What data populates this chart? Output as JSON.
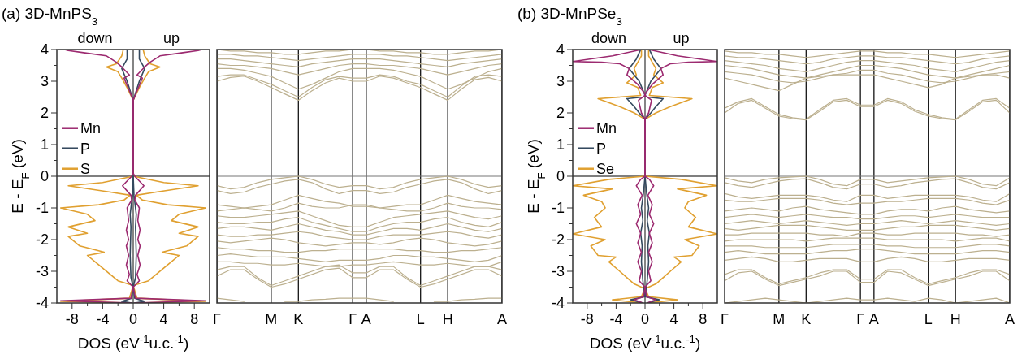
{
  "chart_data": [
    {
      "type": "line",
      "title": "(a) 3D-MnPS$_{3}$",
      "xlabel": "DOS (eV$^{-1}$u.c.$^{-1}$)",
      "ylabel": "E - E$_{F}$ (eV)",
      "annotations": [
        "down",
        "up"
      ],
      "legend": "left",
      "xlim": [
        -10,
        10
      ],
      "ylim": [
        -4,
        4
      ],
      "xticks": [
        -8,
        {
          "value": -6,
          "label": null
        },
        -4,
        {
          "value": -2,
          "label": null
        },
        0,
        {
          "value": 2,
          "label": null
        },
        4,
        {
          "value": 6,
          "label": null
        },
        8
      ],
      "yticks": [
        -4,
        {
          "value": -3.5,
          "label": null
        },
        -3,
        {
          "value": -2.5,
          "label": null
        },
        -2,
        {
          "value": -1.5,
          "label": null
        },
        -1,
        {
          "value": -0.5,
          "label": null
        },
        0,
        {
          "value": 0.5,
          "label": null
        },
        1,
        {
          "value": 1.5,
          "label": null
        },
        2,
        {
          "value": 2.5,
          "label": null
        },
        3,
        {
          "value": 3.5,
          "label": null
        },
        4
      ],
      "ref_lines": [
        {
          "axis": "y",
          "value": 0,
          "color": "#000000"
        },
        {
          "axis": "x",
          "value": 0,
          "color": "#333333"
        }
      ],
      "series": [
        {
          "name": "S",
          "color": "#e0a030",
          "x": [
            0.3,
            9.5,
            0.5,
            0,
            2,
            3,
            4.5,
            6,
            3.8,
            7,
            8.5,
            6,
            8.5,
            5,
            6,
            9.5,
            4.5,
            1.2,
            0.4,
            3,
            8.5,
            4,
            0,
            0,
            0.8,
            1.5,
            2,
            3.5,
            2.2,
            1.5,
            1.3
          ],
          "values": [
            -4,
            -3.95,
            -3.85,
            -3.45,
            -3.3,
            -3.1,
            -2.8,
            -2.5,
            -2.4,
            -2.2,
            -1.9,
            -1.8,
            -1.6,
            -1.4,
            -1.2,
            -1,
            -0.9,
            -0.75,
            -0.6,
            -0.5,
            -0.3,
            -0.2,
            0,
            2.4,
            2.8,
            3.1,
            3.3,
            3.45,
            3.55,
            3.8,
            4
          ]
        },
        {
          "color": "#e0a030",
          "x": [
            -0.3,
            -9.5,
            -0.5,
            0,
            -2,
            -3,
            -4.5,
            -6,
            -3.8,
            -7,
            -8.5,
            -6,
            -8.5,
            -5,
            -6,
            -9.5,
            -4.5,
            -1.2,
            -0.4,
            -3,
            -8.5,
            -4,
            0,
            0,
            -0.8,
            -1.5,
            -2,
            -3.5,
            -2.2,
            -1.5,
            -1.3
          ],
          "values": [
            -4,
            -3.95,
            -3.85,
            -3.45,
            -3.3,
            -3.1,
            -2.8,
            -2.5,
            -2.4,
            -2.2,
            -1.9,
            -1.8,
            -1.6,
            -1.4,
            -1.2,
            -1,
            -0.9,
            -0.75,
            -0.6,
            -0.5,
            -0.3,
            -0.2,
            0,
            2.4,
            2.8,
            3.1,
            3.3,
            3.45,
            3.55,
            3.8,
            4
          ]
        },
        {
          "name": "P",
          "color": "#34495e",
          "x": [
            0.2,
            1.5,
            0.2,
            0,
            0.3,
            0.4,
            0.3,
            0.4,
            0.1,
            0,
            0,
            0.8,
            1.5,
            0.8,
            0.8
          ],
          "values": [
            -4,
            -3.95,
            -3.85,
            -3.5,
            -3.2,
            -2.5,
            -1.6,
            -1.2,
            -0.6,
            0,
            2.4,
            3,
            3.4,
            3.7,
            4
          ]
        },
        {
          "color": "#34495e",
          "x": [
            -0.2,
            -1.5,
            -0.2,
            0,
            -0.3,
            -0.4,
            -0.3,
            -0.4,
            -0.1,
            0,
            0,
            -0.8,
            -1.5,
            -0.8,
            -0.8
          ],
          "values": [
            -4,
            -3.95,
            -3.85,
            -3.5,
            -3.2,
            -2.5,
            -1.6,
            -1.2,
            -0.6,
            0,
            2.4,
            3,
            3.4,
            3.7,
            4
          ]
        },
        {
          "name": "Mn",
          "color": "#9c2a70",
          "x": [
            0.2,
            9.5,
            0.3,
            0,
            0.8,
            0.5,
            0.9,
            0.6,
            0.9,
            0.6,
            0.9,
            0.6,
            0.8,
            0.2,
            0.3,
            1.4,
            0.2,
            0,
            0,
            0.5,
            1.2,
            0.5,
            1.5,
            2.2,
            3.5,
            6.5,
            8.5,
            9
          ],
          "values": [
            -4,
            -3.93,
            -3.85,
            -3.5,
            -3.3,
            -3.1,
            -2.8,
            -2.5,
            -2.2,
            -2,
            -1.7,
            -1.4,
            -1,
            -0.75,
            -0.6,
            -0.3,
            0,
            0.1,
            2.4,
            2.7,
            3.1,
            3.2,
            3.45,
            3.6,
            3.8,
            3.9,
            3.97,
            4
          ]
        },
        {
          "color": "#9c2a70",
          "x": [
            -0.2,
            -9.5,
            -0.3,
            0,
            -0.8,
            -0.5,
            -0.9,
            -0.6,
            -0.9,
            -0.6,
            -0.9,
            -0.6,
            -0.8,
            -0.2,
            -0.3,
            -1.4,
            -0.2,
            0,
            0,
            -0.5,
            -1.2,
            -0.5,
            -1.5,
            -2.2,
            -3.5,
            -6.5,
            -8.5,
            -9
          ],
          "values": [
            -4,
            -3.93,
            -3.85,
            -3.5,
            -3.3,
            -3.1,
            -2.8,
            -2.5,
            -2.2,
            -2,
            -1.7,
            -1.4,
            -1,
            -0.75,
            -0.6,
            -0.3,
            0,
            0.1,
            2.4,
            2.7,
            3.1,
            3.2,
            3.45,
            3.6,
            3.8,
            3.9,
            3.97,
            4
          ]
        }
      ]
    },
    {
      "type": "line",
      "tick_labels": "x",
      "grid": "x",
      "ylim": [
        -4,
        4
      ],
      "categories": [
        "Γ",
        null,
        null,
        null,
        "M",
        null,
        "K",
        null,
        null,
        null,
        "Γ",
        "A",
        null,
        null,
        null,
        "L",
        null,
        "H",
        null,
        null,
        null,
        "A"
      ],
      "yticks": [
        -4,
        -3,
        -2,
        -1,
        0,
        1,
        2,
        3,
        4
      ],
      "ref_lines": [
        {
          "axis": "y",
          "value": 0,
          "color": "#777777"
        }
      ],
      "series": [
        {
          "color": "#bcb08f",
          "values": [
            3.0,
            3.12,
            3.16,
            3.0,
            2.8,
            2.6,
            2.4,
            2.7,
            2.95,
            3.1,
            3.0,
            3.0,
            3.16,
            3.1,
            2.95,
            2.8,
            2.6,
            2.4,
            2.75,
            3.05,
            3.12,
            3.0
          ]
        },
        {
          "color": "#bcb08f",
          "values": [
            3.15,
            3.2,
            3.2,
            3.05,
            2.9,
            2.7,
            2.5,
            2.8,
            3.05,
            3.15,
            3.1,
            3.1,
            3.2,
            3.15,
            3.0,
            2.9,
            2.7,
            2.5,
            2.85,
            3.15,
            3.2,
            3.15
          ]
        },
        {
          "color": "#bcb08f",
          "values": [
            3.4,
            3.4,
            3.35,
            3.25,
            3.15,
            2.95,
            2.75,
            2.9,
            3.1,
            3.3,
            3.4,
            3.4,
            3.4,
            3.35,
            3.25,
            3.15,
            2.95,
            2.75,
            2.9,
            3.1,
            3.3,
            3.4
          ]
        },
        {
          "color": "#bcb08f",
          "values": [
            3.55,
            3.5,
            3.5,
            3.45,
            3.4,
            3.3,
            3.2,
            3.3,
            3.4,
            3.5,
            3.55,
            3.55,
            3.5,
            3.5,
            3.45,
            3.4,
            3.3,
            3.2,
            3.3,
            3.4,
            3.5,
            3.55
          ]
        },
        {
          "color": "#bcb08f",
          "values": [
            3.7,
            3.7,
            3.65,
            3.6,
            3.55,
            3.5,
            3.45,
            3.55,
            3.6,
            3.65,
            3.7,
            3.7,
            3.7,
            3.65,
            3.6,
            3.55,
            3.5,
            3.45,
            3.55,
            3.6,
            3.65,
            3.7
          ]
        },
        {
          "color": "#bcb08f",
          "values": [
            3.85,
            3.85,
            3.8,
            3.8,
            3.75,
            3.7,
            3.65,
            3.7,
            3.75,
            3.8,
            3.85,
            3.85,
            3.85,
            3.8,
            3.8,
            3.75,
            3.7,
            3.65,
            3.7,
            3.75,
            3.8,
            3.85
          ]
        },
        {
          "color": "#bcb08f",
          "values": [
            4.0,
            3.95,
            3.95,
            3.9,
            3.9,
            3.85,
            3.85,
            3.9,
            3.95,
            3.95,
            4.0,
            4.0,
            3.95,
            3.95,
            3.9,
            3.9,
            3.85,
            3.85,
            3.9,
            3.95,
            3.95,
            4.0
          ]
        },
        {
          "color": "#bcb08f",
          "values": [
            -0.3,
            -0.4,
            -0.35,
            -0.2,
            -0.1,
            -0.05,
            0.0,
            -0.1,
            -0.25,
            -0.35,
            -0.3,
            -0.3,
            -0.4,
            -0.35,
            -0.2,
            -0.1,
            -0.05,
            0.0,
            -0.1,
            -0.25,
            -0.35,
            -0.3
          ]
        },
        {
          "color": "#bcb08f",
          "values": [
            -0.45,
            -0.55,
            -0.5,
            -0.35,
            -0.25,
            -0.15,
            -0.1,
            -0.2,
            -0.4,
            -0.55,
            -0.45,
            -0.45,
            -0.55,
            -0.5,
            -0.35,
            -0.25,
            -0.15,
            -0.1,
            -0.2,
            -0.4,
            -0.55,
            -0.45
          ]
        },
        {
          "color": "#bcb08f",
          "values": [
            -0.9,
            -0.95,
            -1.0,
            -0.95,
            -0.9,
            -0.75,
            -0.6,
            -0.7,
            -0.8,
            -0.85,
            -0.95,
            -0.95,
            -1.0,
            -0.95,
            -0.9,
            -0.9,
            -0.75,
            -0.6,
            -0.7,
            -0.8,
            -0.85,
            -0.9
          ]
        },
        {
          "color": "#bcb08f",
          "values": [
            -1.1,
            -1.05,
            -1.0,
            -1.05,
            -1.1,
            -1.0,
            -0.85,
            -0.95,
            -1.0,
            -1.0,
            -0.9,
            -0.9,
            -1.0,
            -1.05,
            -1.1,
            -1.1,
            -1.0,
            -0.85,
            -0.95,
            -1.0,
            -1.0,
            -1.05
          ]
        },
        {
          "color": "#bcb08f",
          "values": [
            -1.25,
            -1.3,
            -1.3,
            -1.25,
            -1.2,
            -1.15,
            -1.1,
            -1.25,
            -1.4,
            -1.55,
            -1.6,
            -1.6,
            -1.45,
            -1.3,
            -1.25,
            -1.2,
            -1.15,
            -1.1,
            -1.2,
            -1.3,
            -1.35,
            -1.25
          ]
        },
        {
          "color": "#bcb08f",
          "values": [
            -1.45,
            -1.5,
            -1.5,
            -1.45,
            -1.45,
            -1.35,
            -1.3,
            -1.45,
            -1.55,
            -1.65,
            -1.75,
            -1.75,
            -1.6,
            -1.5,
            -1.45,
            -1.45,
            -1.35,
            -1.3,
            -1.45,
            -1.55,
            -1.6,
            -1.45
          ]
        },
        {
          "color": "#bcb08f",
          "values": [
            -1.65,
            -1.6,
            -1.6,
            -1.65,
            -1.7,
            -1.6,
            -1.5,
            -1.6,
            -1.7,
            -1.75,
            -1.85,
            -1.85,
            -1.75,
            -1.65,
            -1.65,
            -1.7,
            -1.6,
            -1.5,
            -1.6,
            -1.7,
            -1.75,
            -1.65
          ]
        },
        {
          "color": "#bcb08f",
          "values": [
            -1.85,
            -1.9,
            -1.9,
            -1.85,
            -1.85,
            -1.8,
            -1.75,
            -1.8,
            -1.9,
            -1.95,
            -2.0,
            -2.0,
            -1.9,
            -1.85,
            -1.85,
            -1.85,
            -1.8,
            -1.75,
            -1.8,
            -1.9,
            -1.95,
            -1.85
          ]
        },
        {
          "color": "#bcb08f",
          "values": [
            -2.05,
            -2.1,
            -2.05,
            -2.0,
            -1.95,
            -2.0,
            -2.1,
            -2.15,
            -2.2,
            -2.15,
            -2.1,
            -2.1,
            -2.15,
            -2.1,
            -2.0,
            -1.95,
            -2.0,
            -2.1,
            -2.15,
            -2.2,
            -2.15,
            -2.05
          ]
        },
        {
          "color": "#bcb08f",
          "values": [
            -2.25,
            -2.3,
            -2.3,
            -2.35,
            -2.35,
            -2.4,
            -2.4,
            -2.35,
            -2.35,
            -2.3,
            -2.3,
            -2.3,
            -2.3,
            -2.3,
            -2.35,
            -2.35,
            -2.4,
            -2.4,
            -2.35,
            -2.35,
            -2.3,
            -2.25
          ]
        },
        {
          "color": "#bcb08f",
          "values": [
            -2.5,
            -2.45,
            -2.5,
            -2.55,
            -2.55,
            -2.55,
            -2.6,
            -2.65,
            -2.7,
            -2.65,
            -2.65,
            -2.65,
            -2.6,
            -2.5,
            -2.5,
            -2.55,
            -2.55,
            -2.6,
            -2.65,
            -2.7,
            -2.65,
            -2.5
          ]
        },
        {
          "color": "#bcb08f",
          "values": [
            -2.7,
            -2.7,
            -2.75,
            -2.75,
            -2.8,
            -2.8,
            -2.75,
            -2.8,
            -2.85,
            -2.85,
            -2.8,
            -2.8,
            -2.75,
            -2.7,
            -2.75,
            -2.8,
            -2.8,
            -2.75,
            -2.8,
            -2.85,
            -2.85,
            -2.7
          ]
        },
        {
          "color": "#bcb08f",
          "values": [
            -2.95,
            -2.85,
            -2.85,
            -3.2,
            -3.45,
            -3.3,
            -3.15,
            -3.0,
            -2.85,
            -2.8,
            -3.05,
            -3.05,
            -2.85,
            -2.85,
            -3.2,
            -3.45,
            -3.3,
            -3.15,
            -3.0,
            -2.85,
            -2.85,
            -2.95
          ]
        },
        {
          "color": "#bcb08f",
          "values": [
            -3.15,
            -2.95,
            -2.95,
            -3.25,
            -3.5,
            -3.4,
            -3.25,
            -3.1,
            -2.95,
            -2.9,
            -3.2,
            -3.2,
            -2.95,
            -2.95,
            -3.25,
            -3.5,
            -3.4,
            -3.25,
            -3.1,
            -2.95,
            -2.95,
            -3.15
          ]
        },
        {
          "color": "#bcb08f",
          "values": [
            -3.85,
            -3.9,
            -3.95,
            null,
            null,
            -3.95,
            -3.95,
            -3.9,
            -3.88,
            -3.85,
            -3.85,
            -3.85,
            -3.9,
            -3.95,
            null,
            null,
            -3.95,
            -3.95,
            -3.9,
            -3.88,
            -3.85,
            -3.85
          ]
        }
      ]
    },
    {
      "type": "line",
      "title": "(b) 3D-MnPSe$_{3}$",
      "xlabel": "DOS (eV$^{-1}$u.c.$^{-1}$)",
      "ylabel": "E - E$_{F}$ (eV)",
      "annotations": [
        "down",
        "up"
      ],
      "legend": "left",
      "xlim": [
        -10,
        10
      ],
      "ylim": [
        -4,
        4
      ],
      "xticks": [
        -8,
        {
          "value": -6,
          "label": null
        },
        -4,
        {
          "value": -2,
          "label": null
        },
        0,
        {
          "value": 2,
          "label": null
        },
        4,
        {
          "value": 6,
          "label": null
        },
        8
      ],
      "yticks": [
        -4,
        {
          "value": -3.5,
          "label": null
        },
        -3,
        {
          "value": -2.5,
          "label": null
        },
        -2,
        {
          "value": -1.5,
          "label": null
        },
        -1,
        {
          "value": -0.5,
          "label": null
        },
        0,
        {
          "value": 0.5,
          "label": null
        },
        1,
        {
          "value": 1.5,
          "label": null
        },
        2,
        {
          "value": 2.5,
          "label": null
        },
        3,
        {
          "value": 3.5,
          "label": null
        },
        4
      ],
      "ref_lines": [
        {
          "axis": "y",
          "value": 0,
          "color": "#000000"
        },
        {
          "axis": "x",
          "value": 0,
          "color": "#333333"
        }
      ],
      "series": [
        {
          "name": "Se",
          "color": "#e0a030",
          "x": [
            0.3,
            4.5,
            0.5,
            0,
            1.5,
            2.5,
            3.5,
            5,
            4,
            6.5,
            7.5,
            5.5,
            10,
            6,
            7,
            5.5,
            6,
            8.5,
            4.5,
            10,
            5,
            0,
            0,
            1.5,
            3.5,
            6.5,
            0.6,
            1,
            2.5,
            1.2,
            1.5,
            0.5,
            0.5
          ],
          "values": [
            -4,
            -3.9,
            -3.8,
            -3.55,
            -3.4,
            -3.2,
            -3,
            -2.7,
            -2.55,
            -2.5,
            -2.2,
            -2,
            -1.82,
            -1.6,
            -1.3,
            -1,
            -0.8,
            -0.6,
            -0.4,
            -0.3,
            -0.1,
            0,
            1.8,
            2,
            2.2,
            2.45,
            2.55,
            2.8,
            2.95,
            3.2,
            3.4,
            3.8,
            4
          ]
        },
        {
          "color": "#e0a030",
          "x": [
            -0.3,
            -4.5,
            -0.5,
            0,
            -1.5,
            -2.5,
            -3.5,
            -5,
            -4,
            -6.5,
            -7.5,
            -5.5,
            -10,
            -6,
            -7,
            -5.5,
            -6,
            -8.5,
            -4.5,
            -10,
            -5,
            0,
            0,
            -1.5,
            -3.5,
            -6.5,
            -0.6,
            -1,
            -2.5,
            -1.2,
            -1.5,
            -0.5,
            -0.5
          ],
          "values": [
            -4,
            -3.9,
            -3.8,
            -3.55,
            -3.4,
            -3.2,
            -3,
            -2.7,
            -2.55,
            -2.5,
            -2.2,
            -2,
            -1.82,
            -1.6,
            -1.3,
            -1,
            -0.8,
            -0.6,
            -0.4,
            -0.3,
            -0.1,
            0,
            1.8,
            2,
            2.2,
            2.45,
            2.55,
            2.8,
            2.95,
            3.2,
            3.4,
            3.8,
            4
          ]
        },
        {
          "name": "P",
          "color": "#34495e",
          "x": [
            0.3,
            2,
            0,
            0.3,
            0.5,
            0.4,
            0.6,
            0.3,
            0.5,
            0.2,
            0,
            0,
            0.8,
            1.5,
            2.5,
            0.3,
            0,
            0.8,
            1.5,
            2.2,
            1.2,
            0.6
          ],
          "values": [
            -4,
            -3.9,
            -3.8,
            -3.3,
            -2.7,
            -2.2,
            -1.8,
            -1.4,
            -1,
            -0.5,
            0,
            1.8,
            2,
            2.2,
            2.45,
            2.5,
            2.55,
            3,
            3.2,
            3.4,
            3.7,
            4
          ]
        },
        {
          "color": "#34495e",
          "x": [
            -0.3,
            -2,
            0,
            -0.3,
            -0.5,
            -0.4,
            -0.6,
            -0.3,
            -0.5,
            -0.2,
            0,
            0,
            -0.8,
            -1.5,
            -2.5,
            -0.3,
            0,
            -0.8,
            -1.5,
            -2.2,
            -1.2,
            -0.6
          ],
          "values": [
            -4,
            -3.9,
            -3.8,
            -3.3,
            -2.7,
            -2.2,
            -1.8,
            -1.4,
            -1,
            -0.5,
            0,
            1.8,
            2,
            2.2,
            2.45,
            2.5,
            2.55,
            3,
            3.2,
            3.4,
            3.7,
            4
          ]
        },
        {
          "name": "Mn",
          "color": "#9c2a70",
          "x": [
            0.3,
            1.5,
            0.2,
            0,
            0.8,
            0.5,
            1,
            0.5,
            1,
            0.6,
            1.2,
            0.6,
            1,
            0.4,
            1.2,
            0.6,
            0,
            0,
            0.5,
            0.9,
            0.6,
            0.3,
            0,
            0,
            1,
            2.5,
            2.2,
            3.5,
            6,
            10,
            4.5,
            0.5
          ],
          "values": [
            -4,
            -3.9,
            -3.8,
            -3.5,
            -3.3,
            -3,
            -2.7,
            -2.4,
            -2.1,
            -1.8,
            -1.5,
            -1.2,
            -0.9,
            -0.6,
            -0.3,
            -0.1,
            0,
            1.8,
            2,
            2.4,
            2.45,
            2.5,
            2.55,
            2.6,
            2.9,
            3.2,
            3.4,
            3.55,
            3.6,
            3.62,
            3.8,
            4
          ]
        },
        {
          "color": "#9c2a70",
          "x": [
            -0.3,
            -1.5,
            -0.2,
            0,
            -0.8,
            -0.5,
            -1,
            -0.5,
            -1,
            -0.6,
            -1.2,
            -0.6,
            -1,
            -0.4,
            -1.2,
            -0.6,
            0,
            0,
            -0.5,
            -0.9,
            -0.6,
            -0.3,
            0,
            0,
            -1,
            -2.5,
            -2.2,
            -3.5,
            -6,
            -10,
            -4.5,
            -0.5
          ],
          "values": [
            -4,
            -3.9,
            -3.8,
            -3.5,
            -3.3,
            -3,
            -2.7,
            -2.4,
            -2.1,
            -1.8,
            -1.5,
            -1.2,
            -0.9,
            -0.6,
            -0.3,
            -0.1,
            0,
            1.8,
            2,
            2.4,
            2.45,
            2.5,
            2.55,
            2.6,
            2.9,
            3.2,
            3.4,
            3.55,
            3.6,
            3.62,
            3.8,
            4
          ]
        }
      ]
    },
    {
      "type": "line",
      "tick_labels": "x",
      "grid": "x",
      "ylim": [
        -4,
        4
      ],
      "categories": [
        "Γ",
        null,
        null,
        null,
        "M",
        null,
        "K",
        null,
        null,
        null,
        "Γ",
        "A",
        null,
        null,
        null,
        "L",
        null,
        "H",
        null,
        null,
        null,
        "A"
      ],
      "yticks": [
        -4,
        -3,
        -2,
        -1,
        0,
        1,
        2,
        3,
        4
      ],
      "ref_lines": [
        {
          "axis": "y",
          "value": 0,
          "color": "#777777"
        }
      ],
      "series": [
        {
          "color": "#bcb08f",
          "values": [
            2.15,
            2.35,
            2.45,
            2.2,
            1.95,
            1.85,
            1.8,
            2.1,
            2.4,
            2.45,
            2.25,
            2.25,
            2.45,
            2.35,
            2.1,
            1.95,
            1.85,
            1.8,
            2.1,
            2.4,
            2.45,
            2.15
          ]
        },
        {
          "color": "#bcb08f",
          "values": [
            2.0,
            2.3,
            2.4,
            2.15,
            1.9,
            1.82,
            1.78,
            2.05,
            2.35,
            2.4,
            2.2,
            2.2,
            2.4,
            2.3,
            2.05,
            1.9,
            1.82,
            1.78,
            2.05,
            2.35,
            2.4,
            2.0
          ]
        },
        {
          "color": "#bcb08f",
          "values": [
            3.1,
            3.0,
            2.9,
            2.8,
            2.7,
            2.9,
            3.1,
            3.15,
            3.2,
            3.2,
            3.2,
            3.2,
            3.1,
            3.0,
            2.9,
            2.8,
            2.9,
            3.1,
            3.15,
            3.2,
            3.2,
            3.1
          ]
        },
        {
          "color": "#bcb08f",
          "values": [
            3.3,
            3.25,
            3.2,
            3.1,
            3.0,
            2.95,
            3.0,
            3.1,
            3.2,
            3.25,
            3.35,
            3.35,
            3.25,
            3.2,
            3.1,
            3.0,
            2.95,
            3.0,
            3.1,
            3.2,
            3.25,
            3.3
          ]
        },
        {
          "color": "#bcb08f",
          "values": [
            3.5,
            3.45,
            3.4,
            3.3,
            3.2,
            3.15,
            3.1,
            3.2,
            3.3,
            3.4,
            3.5,
            3.5,
            3.45,
            3.4,
            3.3,
            3.2,
            3.15,
            3.1,
            3.2,
            3.3,
            3.4,
            3.5
          ]
        },
        {
          "color": "#bcb08f",
          "values": [
            3.65,
            3.6,
            3.55,
            3.5,
            3.4,
            3.35,
            3.3,
            3.4,
            3.5,
            3.6,
            3.65,
            3.65,
            3.6,
            3.55,
            3.5,
            3.4,
            3.35,
            3.3,
            3.4,
            3.5,
            3.6,
            3.65
          ]
        },
        {
          "color": "#bcb08f",
          "values": [
            3.8,
            3.75,
            3.75,
            3.7,
            3.65,
            3.6,
            3.55,
            3.6,
            3.7,
            3.75,
            3.8,
            3.8,
            3.75,
            3.75,
            3.7,
            3.65,
            3.6,
            3.55,
            3.6,
            3.7,
            3.75,
            3.8
          ]
        },
        {
          "color": "#bcb08f",
          "values": [
            3.95,
            3.9,
            3.9,
            3.85,
            3.85,
            3.8,
            3.75,
            3.8,
            3.85,
            3.9,
            3.95,
            3.95,
            3.9,
            3.9,
            3.85,
            3.85,
            3.8,
            3.75,
            3.8,
            3.85,
            3.9,
            3.95
          ]
        },
        {
          "color": "#bcb08f",
          "values": [
            -0.05,
            -0.15,
            -0.2,
            -0.1,
            -0.05,
            -0.02,
            0.0,
            -0.1,
            -0.25,
            -0.3,
            -0.1,
            -0.1,
            -0.2,
            -0.15,
            -0.1,
            -0.05,
            -0.02,
            0.0,
            -0.1,
            -0.25,
            -0.3,
            -0.05
          ]
        },
        {
          "color": "#bcb08f",
          "values": [
            -0.2,
            -0.3,
            -0.35,
            -0.25,
            -0.15,
            -0.1,
            -0.08,
            -0.2,
            -0.35,
            -0.4,
            -0.25,
            -0.25,
            -0.35,
            -0.3,
            -0.2,
            -0.15,
            -0.1,
            -0.08,
            -0.2,
            -0.35,
            -0.4,
            -0.2
          ]
        },
        {
          "color": "#bcb08f",
          "values": [
            -0.55,
            -0.65,
            -0.7,
            -0.65,
            -0.6,
            -0.6,
            -0.6,
            -0.65,
            -0.75,
            -0.8,
            -0.6,
            -0.6,
            -0.7,
            -0.65,
            -0.6,
            -0.6,
            -0.6,
            -0.6,
            -0.65,
            -0.75,
            -0.8,
            -0.55
          ]
        },
        {
          "color": "#bcb08f",
          "values": [
            -0.75,
            -0.8,
            -0.8,
            -0.75,
            -0.7,
            -0.7,
            -0.7,
            -0.75,
            -0.85,
            -0.9,
            -0.85,
            -0.85,
            -0.8,
            -0.8,
            -0.75,
            -0.7,
            -0.7,
            -0.7,
            -0.75,
            -0.85,
            -0.9,
            -0.75
          ]
        },
        {
          "color": "#bcb08f",
          "values": [
            -1.1,
            -1.05,
            -1.0,
            -1.05,
            -1.1,
            -1.0,
            -0.95,
            -1.05,
            -1.1,
            -1.15,
            -1.2,
            -1.2,
            -1.1,
            -1.05,
            -1.05,
            -1.1,
            -1.0,
            -0.95,
            -1.05,
            -1.1,
            -1.15,
            -1.1
          ]
        },
        {
          "color": "#bcb08f",
          "values": [
            -1.3,
            -1.25,
            -1.2,
            -1.25,
            -1.3,
            -1.25,
            -1.2,
            -1.25,
            -1.3,
            -1.3,
            -1.35,
            -1.35,
            -1.3,
            -1.25,
            -1.25,
            -1.3,
            -1.25,
            -1.2,
            -1.25,
            -1.3,
            -1.3,
            -1.3
          ]
        },
        {
          "color": "#bcb08f",
          "values": [
            -1.5,
            -1.45,
            -1.4,
            -1.45,
            -1.5,
            -1.45,
            -1.4,
            -1.45,
            -1.5,
            -1.55,
            -1.5,
            -1.5,
            -1.45,
            -1.4,
            -1.45,
            -1.5,
            -1.45,
            -1.4,
            -1.45,
            -1.5,
            -1.55,
            -1.5
          ]
        },
        {
          "color": "#bcb08f",
          "values": [
            -1.65,
            -1.7,
            -1.65,
            -1.6,
            -1.55,
            -1.55,
            -1.55,
            -1.6,
            -1.65,
            -1.7,
            -1.7,
            -1.7,
            -1.65,
            -1.6,
            -1.6,
            -1.55,
            -1.55,
            -1.55,
            -1.6,
            -1.65,
            -1.7,
            -1.65
          ]
        },
        {
          "color": "#bcb08f",
          "values": [
            -1.85,
            -1.85,
            -1.8,
            -1.8,
            -1.8,
            -1.8,
            -1.8,
            -1.85,
            -1.85,
            -1.9,
            -1.8,
            -1.8,
            -1.85,
            -1.85,
            -1.8,
            -1.8,
            -1.8,
            -1.8,
            -1.85,
            -1.85,
            -1.9,
            -1.85
          ]
        },
        {
          "color": "#bcb08f",
          "values": [
            -2.05,
            -2.0,
            -2.0,
            -2.0,
            -2.0,
            -2.0,
            -2.05,
            -2.0,
            -1.95,
            -1.95,
            -1.95,
            -1.95,
            -2.0,
            -2.0,
            -2.0,
            -2.0,
            -2.0,
            -2.05,
            -2.0,
            -1.95,
            -1.95,
            -2.05
          ]
        },
        {
          "color": "#bcb08f",
          "values": [
            -2.2,
            -2.2,
            -2.2,
            -2.25,
            -2.25,
            -2.25,
            -2.25,
            -2.2,
            -2.15,
            -2.15,
            -2.15,
            -2.15,
            -2.2,
            -2.2,
            -2.25,
            -2.25,
            -2.25,
            -2.25,
            -2.2,
            -2.15,
            -2.15,
            -2.2
          ]
        },
        {
          "color": "#bcb08f",
          "values": [
            -2.4,
            -2.35,
            -2.4,
            -2.45,
            -2.45,
            -2.45,
            -2.45,
            -2.4,
            -2.35,
            -2.35,
            -2.3,
            -2.3,
            -2.35,
            -2.4,
            -2.45,
            -2.45,
            -2.45,
            -2.45,
            -2.4,
            -2.35,
            -2.35,
            -2.4
          ]
        },
        {
          "color": "#bcb08f",
          "values": [
            -2.65,
            -2.6,
            -2.55,
            -2.6,
            -2.7,
            -2.7,
            -2.65,
            -2.6,
            -2.6,
            -2.6,
            -2.7,
            -2.7,
            -2.6,
            -2.55,
            -2.6,
            -2.7,
            -2.7,
            -2.65,
            -2.6,
            -2.6,
            -2.6,
            -2.65
          ]
        },
        {
          "color": "#bcb08f",
          "values": [
            -3.1,
            -2.95,
            -2.95,
            -3.2,
            -3.4,
            -3.3,
            -3.2,
            -3.05,
            -2.95,
            -2.95,
            -3.25,
            -3.25,
            -2.95,
            -2.95,
            -3.2,
            -3.4,
            -3.3,
            -3.2,
            -3.05,
            -2.95,
            -2.95,
            -3.1
          ]
        },
        {
          "color": "#bcb08f",
          "values": [
            -3.3,
            -3.05,
            -3.0,
            -3.25,
            -3.45,
            -3.35,
            -3.25,
            -3.15,
            -3.0,
            -3.0,
            -3.35,
            -3.35,
            -3.0,
            -3.05,
            -3.25,
            -3.45,
            -3.35,
            -3.25,
            -3.15,
            -3.0,
            -3.0,
            -3.3
          ]
        },
        {
          "color": "#bcb08f",
          "values": [
            -4.0,
            -3.95,
            -3.9,
            -3.85,
            -3.9,
            -3.95,
            -4.0,
            -3.95,
            -3.9,
            -3.85,
            -3.9,
            -3.9,
            -3.85,
            -3.9,
            -3.95,
            -3.85,
            -3.9,
            -4.0,
            -3.95,
            -3.9,
            -3.85,
            -4.0
          ]
        }
      ]
    }
  ]
}
